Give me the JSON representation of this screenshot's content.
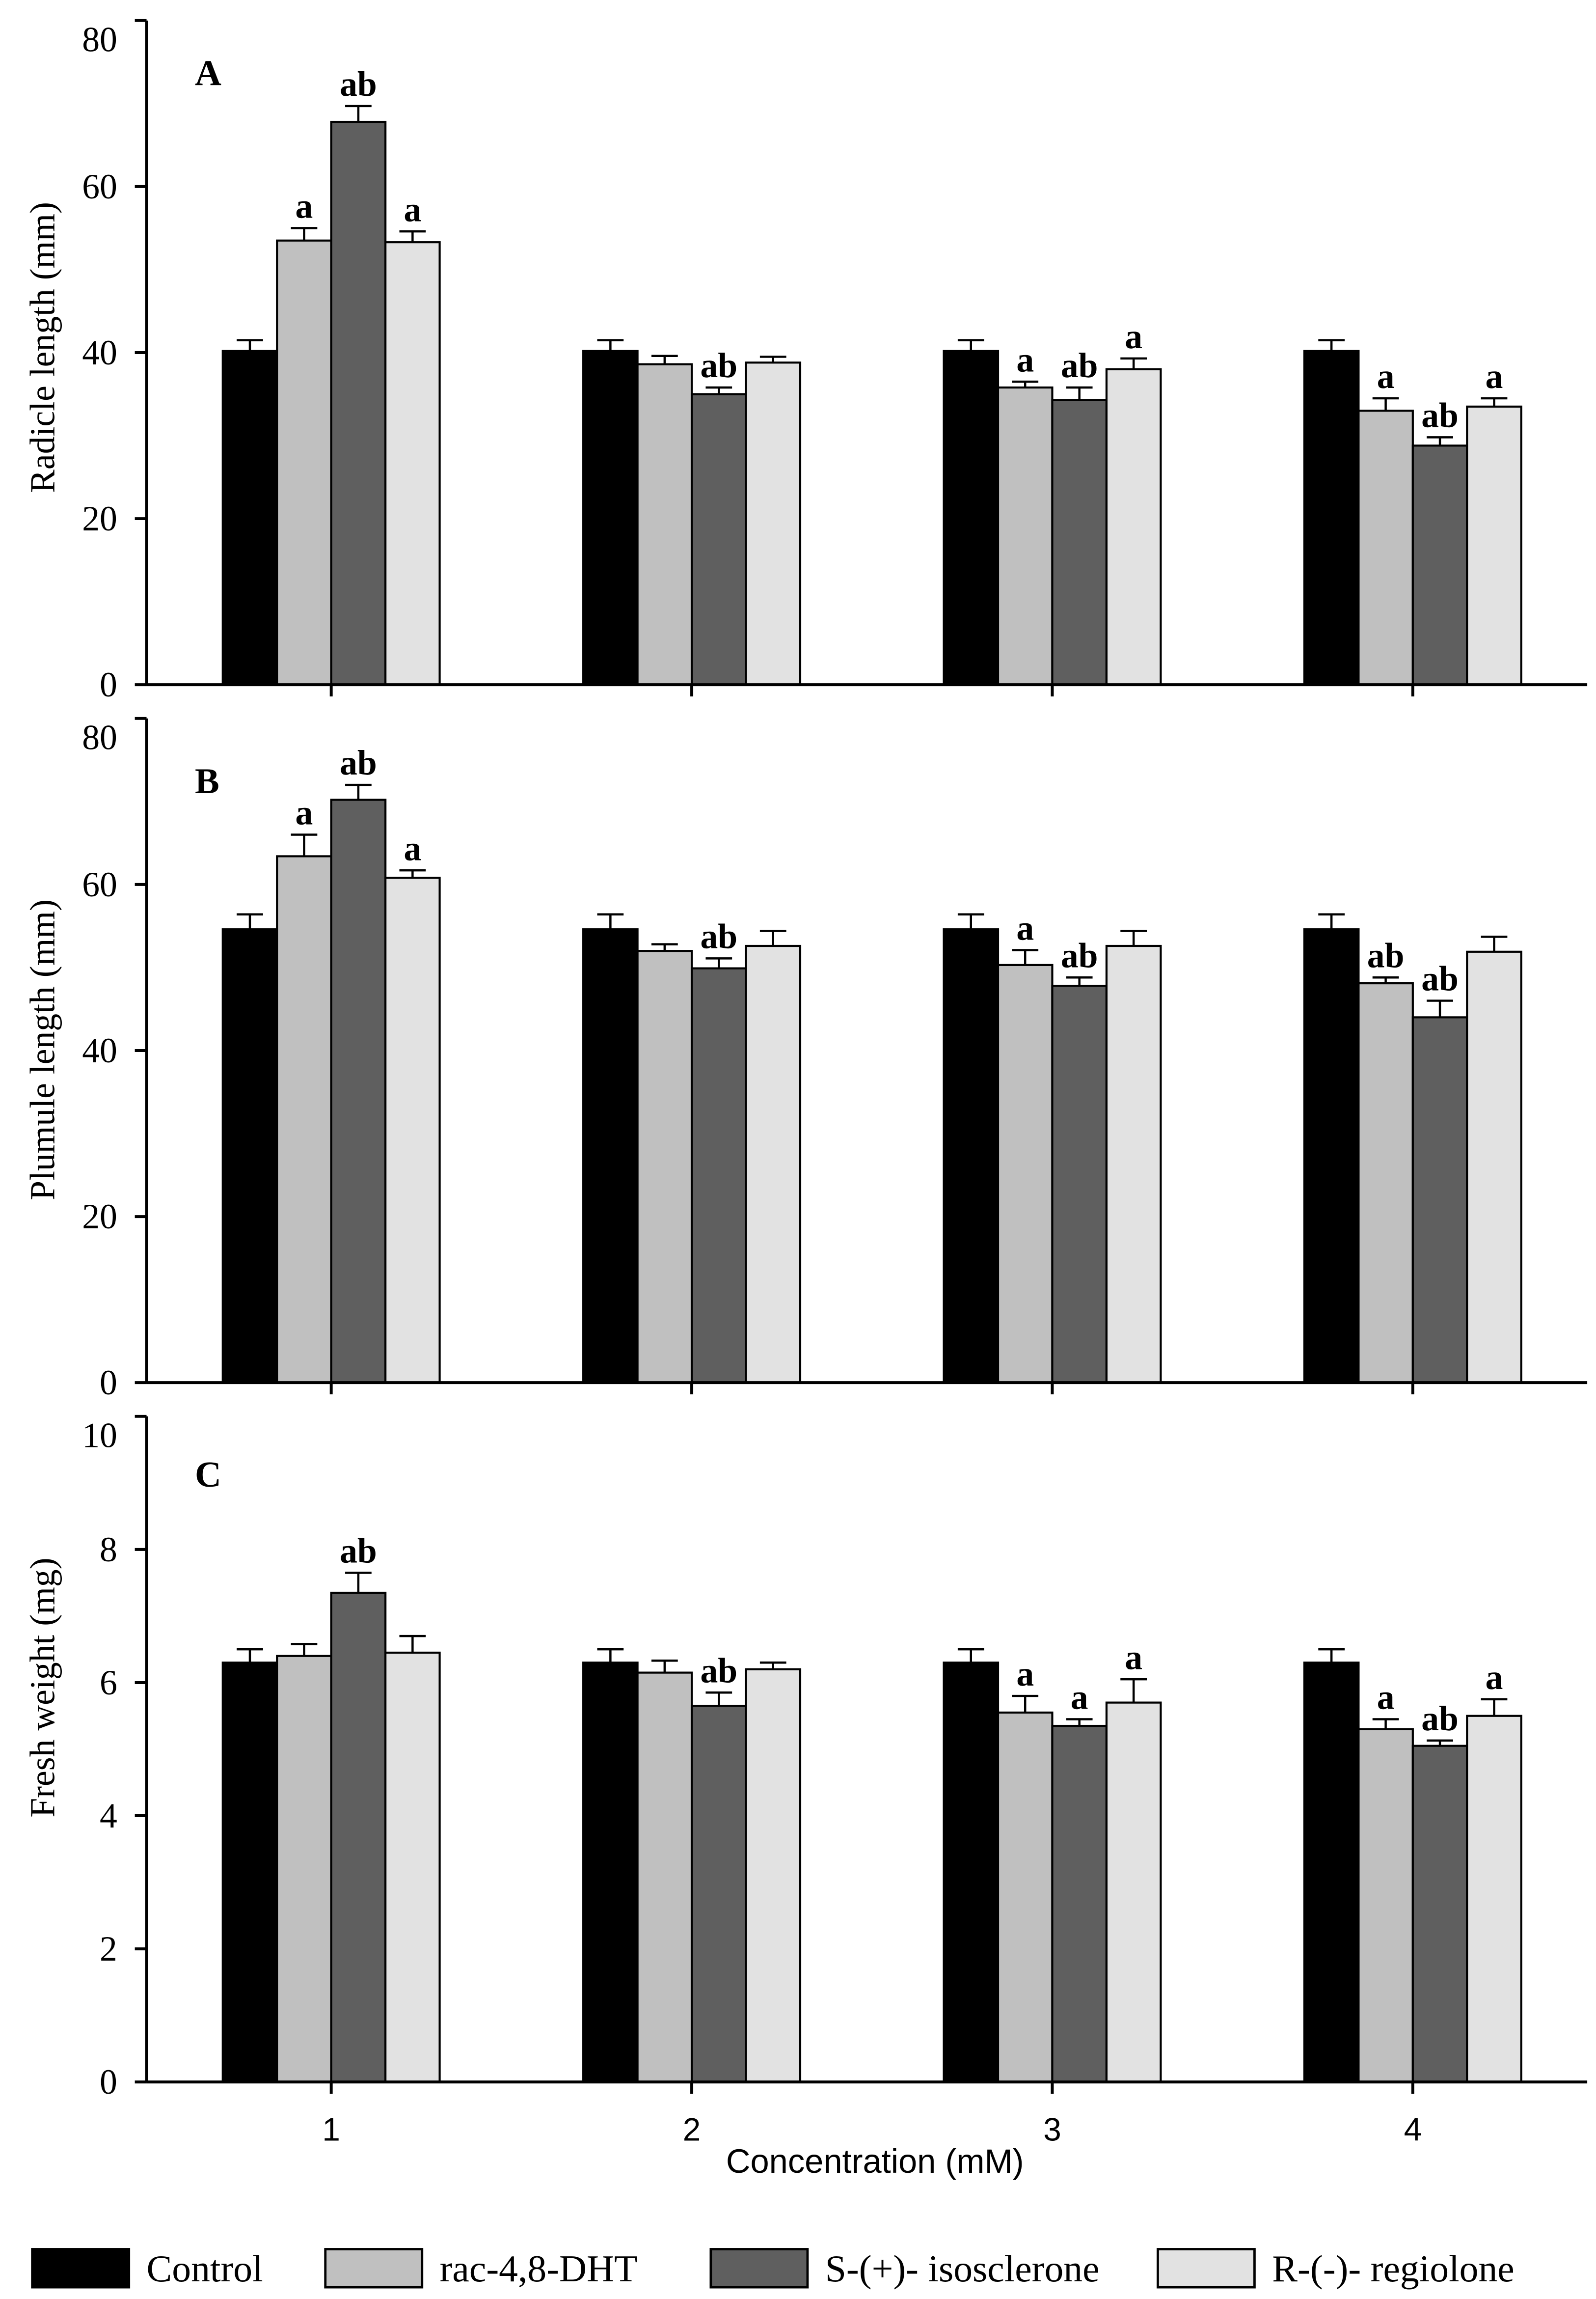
{
  "chart_data": {
    "type": "bar",
    "xlabel": "Concentration (mM)",
    "categories": [
      "1",
      "2",
      "3",
      "4"
    ],
    "legend_position": "bottom",
    "series": [
      {
        "name": "Control",
        "color": "#000000"
      },
      {
        "name": "rac-4,8-DHT",
        "color": "#c0c0c0"
      },
      {
        "name": "S-(+)- isosclerone",
        "color": "#5f5f5f"
      },
      {
        "name": "R-(-)- regiolone",
        "color": "#e2e2e2"
      }
    ],
    "panels": [
      {
        "label": "A",
        "ylabel": "Radicle length (mm)",
        "ylim": [
          0,
          80
        ],
        "yticks": [
          0,
          20,
          40,
          60,
          80
        ],
        "values": [
          [
            40.2,
            40.2,
            40.2,
            40.2
          ],
          [
            53.5,
            38.6,
            35.8,
            33.0
          ],
          [
            67.8,
            35.0,
            34.3,
            28.8
          ],
          [
            53.3,
            38.8,
            38.0,
            33.5
          ]
        ],
        "errors": [
          [
            1.3,
            1.3,
            1.3,
            1.3
          ],
          [
            1.5,
            1.0,
            0.7,
            1.5
          ],
          [
            1.9,
            0.8,
            1.5,
            1.0
          ],
          [
            1.3,
            0.7,
            1.3,
            1.0
          ]
        ],
        "significance": [
          [
            null,
            null,
            null,
            null
          ],
          [
            "a",
            null,
            "a",
            "a"
          ],
          [
            "ab",
            "ab",
            "ab",
            "ab"
          ],
          [
            "a",
            null,
            "a",
            "a"
          ]
        ]
      },
      {
        "label": "B",
        "ylabel": "Plumule length (mm)",
        "ylim": [
          0,
          80
        ],
        "yticks": [
          0,
          20,
          40,
          60,
          80
        ],
        "values": [
          [
            54.6,
            54.6,
            54.6,
            54.6
          ],
          [
            63.4,
            52.0,
            50.3,
            48.1
          ],
          [
            70.2,
            49.9,
            47.8,
            44.0
          ],
          [
            60.8,
            52.6,
            52.6,
            51.9
          ]
        ],
        "errors": [
          [
            1.8,
            1.8,
            1.8,
            1.8
          ],
          [
            2.6,
            0.8,
            1.8,
            0.7
          ],
          [
            1.8,
            1.2,
            1.0,
            2.0
          ],
          [
            0.9,
            1.8,
            1.8,
            1.8
          ]
        ],
        "significance": [
          [
            null,
            null,
            null,
            null
          ],
          [
            "a",
            null,
            "a",
            "ab"
          ],
          [
            "ab",
            "ab",
            "ab",
            "ab"
          ],
          [
            "a",
            null,
            null,
            null
          ]
        ]
      },
      {
        "label": "C",
        "ylabel": "Fresh weight (mg)",
        "ylim": [
          0,
          10
        ],
        "yticks": [
          0,
          2,
          4,
          6,
          8,
          10
        ],
        "values": [
          [
            6.3,
            6.3,
            6.3,
            6.3
          ],
          [
            6.4,
            6.15,
            5.55,
            5.3
          ],
          [
            7.35,
            5.65,
            5.35,
            5.05
          ],
          [
            6.45,
            6.2,
            5.7,
            5.5
          ]
        ],
        "errors": [
          [
            0.2,
            0.2,
            0.2,
            0.2
          ],
          [
            0.18,
            0.18,
            0.25,
            0.15
          ],
          [
            0.3,
            0.2,
            0.1,
            0.08
          ],
          [
            0.25,
            0.1,
            0.35,
            0.25
          ]
        ],
        "significance": [
          [
            null,
            null,
            null,
            null
          ],
          [
            null,
            null,
            "a",
            "a"
          ],
          [
            "ab",
            "ab",
            "a",
            "ab"
          ],
          [
            null,
            null,
            "a",
            "a"
          ]
        ]
      }
    ]
  }
}
